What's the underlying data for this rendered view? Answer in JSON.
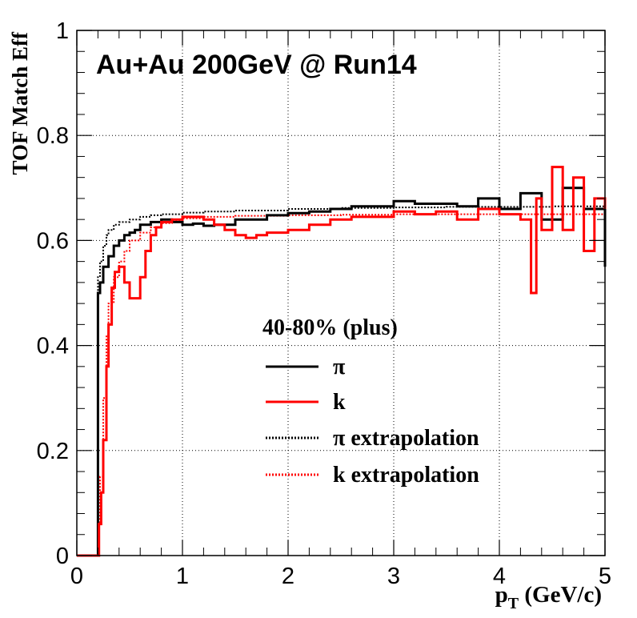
{
  "chart_data": {
    "type": "line",
    "annotation": "Au+Au 200GeV @ Run14",
    "xlabel_main": "p",
    "xlabel_sub": "T",
    "xlabel_rest": " (GeV/c)",
    "ylabel": "TOF Match Eff",
    "xlim": [
      0,
      5
    ],
    "ylim": [
      0,
      1
    ],
    "x_ticks": [
      "0",
      "1",
      "2",
      "3",
      "4",
      "5"
    ],
    "y_ticks": [
      "0",
      "0.2",
      "0.4",
      "0.6",
      "0.8",
      "1"
    ],
    "grid": true,
    "legend_header": "40-80% (plus)",
    "legend_position": "center-right",
    "series": [
      {
        "name": "π",
        "color": "#000000",
        "style": "solid",
        "x": [
          0,
          0.18,
          0.2,
          0.22,
          0.25,
          0.3,
          0.35,
          0.4,
          0.45,
          0.5,
          0.55,
          0.6,
          0.65,
          0.7,
          0.8,
          0.9,
          1.0,
          1.1,
          1.2,
          1.3,
          1.5,
          1.8,
          2.0,
          2.2,
          2.4,
          2.6,
          2.8,
          3.0,
          3.2,
          3.4,
          3.6,
          3.8,
          4.0,
          4.2,
          4.4,
          4.6,
          4.8,
          5.0
        ],
        "y": [
          0,
          0,
          0.5,
          0.52,
          0.55,
          0.57,
          0.59,
          0.6,
          0.61,
          0.615,
          0.62,
          0.63,
          0.63,
          0.635,
          0.64,
          0.635,
          0.63,
          0.632,
          0.628,
          0.63,
          0.64,
          0.648,
          0.652,
          0.655,
          0.66,
          0.665,
          0.665,
          0.675,
          0.67,
          0.67,
          0.665,
          0.68,
          0.66,
          0.69,
          0.64,
          0.7,
          0.66,
          0.55
        ]
      },
      {
        "name": "k",
        "color": "#ff0000",
        "style": "solid",
        "x": [
          0,
          0.2,
          0.21,
          0.23,
          0.25,
          0.28,
          0.3,
          0.33,
          0.36,
          0.4,
          0.45,
          0.5,
          0.55,
          0.6,
          0.65,
          0.7,
          0.75,
          0.8,
          0.9,
          1.0,
          1.1,
          1.2,
          1.3,
          1.4,
          1.5,
          1.6,
          1.7,
          1.8,
          2.0,
          2.2,
          2.4,
          2.6,
          2.8,
          3.0,
          3.2,
          3.4,
          3.6,
          3.8,
          4.0,
          4.2,
          4.3,
          4.35,
          4.4,
          4.5,
          4.6,
          4.7,
          4.8,
          4.9,
          5.0
        ],
        "y": [
          0,
          0,
          0.06,
          0.12,
          0.22,
          0.36,
          0.44,
          0.51,
          0.54,
          0.55,
          0.52,
          0.49,
          0.49,
          0.53,
          0.58,
          0.61,
          0.625,
          0.635,
          0.64,
          0.645,
          0.645,
          0.64,
          0.63,
          0.62,
          0.61,
          0.605,
          0.61,
          0.615,
          0.62,
          0.63,
          0.64,
          0.645,
          0.645,
          0.655,
          0.65,
          0.655,
          0.64,
          0.66,
          0.65,
          0.64,
          0.5,
          0.68,
          0.62,
          0.74,
          0.62,
          0.72,
          0.58,
          0.68,
          0.66
        ]
      },
      {
        "name": "π extrapolation",
        "color": "#000000",
        "style": "dotted",
        "x": [
          0.19,
          0.2,
          0.22,
          0.25,
          0.28,
          0.3,
          0.35,
          0.4,
          0.5,
          0.6,
          0.7,
          0.8,
          1.0,
          1.2,
          1.5,
          2.0,
          2.5,
          3.0,
          3.5,
          4.0,
          4.5,
          5.0
        ],
        "y": [
          0.5,
          0.53,
          0.56,
          0.59,
          0.61,
          0.62,
          0.63,
          0.635,
          0.64,
          0.645,
          0.648,
          0.65,
          0.653,
          0.655,
          0.657,
          0.66,
          0.662,
          0.663,
          0.664,
          0.664,
          0.665,
          0.665
        ]
      },
      {
        "name": "k extrapolation",
        "color": "#ff0000",
        "style": "dotted",
        "x": [
          0.2,
          0.22,
          0.25,
          0.28,
          0.3,
          0.35,
          0.4,
          0.45,
          0.5,
          0.6,
          0.7,
          0.8,
          0.9,
          1.0,
          1.2,
          1.5,
          2.0,
          2.5,
          3.0,
          3.5,
          4.0,
          4.5,
          5.0
        ],
        "y": [
          0.06,
          0.15,
          0.3,
          0.42,
          0.48,
          0.53,
          0.56,
          0.58,
          0.6,
          0.615,
          0.625,
          0.633,
          0.638,
          0.642,
          0.645,
          0.647,
          0.648,
          0.649,
          0.65,
          0.65,
          0.65,
          0.65,
          0.65
        ]
      }
    ]
  }
}
